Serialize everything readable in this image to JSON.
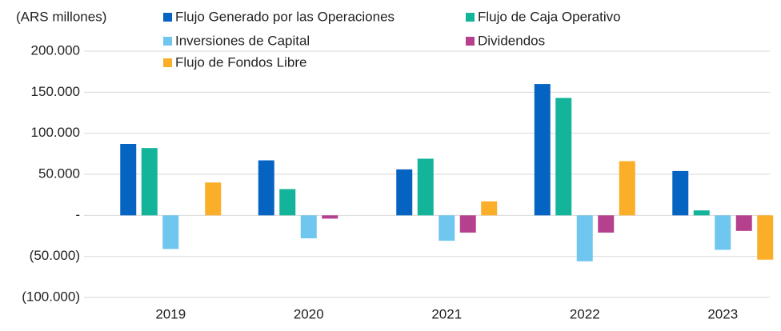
{
  "chart_data": {
    "type": "bar",
    "y_axis_label": "(ARS millones)",
    "categories": [
      "2019",
      "2020",
      "2021",
      "2022",
      "2023"
    ],
    "series": [
      {
        "name": "Flujo Generado por las Operaciones",
        "color": "#0563c1",
        "values": [
          87000,
          67000,
          56000,
          160000,
          54000
        ]
      },
      {
        "name": "Flujo de Caja Operativo",
        "color": "#13b49a",
        "values": [
          82000,
          32000,
          69000,
          143000,
          6000
        ]
      },
      {
        "name": "Inversiones de Capital",
        "color": "#6fc6ee",
        "values": [
          -41000,
          -28000,
          -31000,
          -56000,
          -42000
        ]
      },
      {
        "name": "Dividendos",
        "color": "#b5418e",
        "values": [
          0,
          -4000,
          -21000,
          -21000,
          -19000
        ]
      },
      {
        "name": "Flujo de Fondos Libre",
        "color": "#fbae28",
        "values": [
          40000,
          0,
          17000,
          66000,
          -54000
        ]
      }
    ],
    "ylim": [
      -100000,
      200000
    ],
    "yticks": [
      {
        "value": -100000,
        "label": "(100.000)"
      },
      {
        "value": -50000,
        "label": "(50.000)"
      },
      {
        "value": 0,
        "label": "-"
      },
      {
        "value": 50000,
        "label": "50.000"
      },
      {
        "value": 100000,
        "label": "100.000"
      },
      {
        "value": 150000,
        "label": "150.000"
      },
      {
        "value": 200000,
        "label": "200.000"
      }
    ],
    "grid": true
  }
}
